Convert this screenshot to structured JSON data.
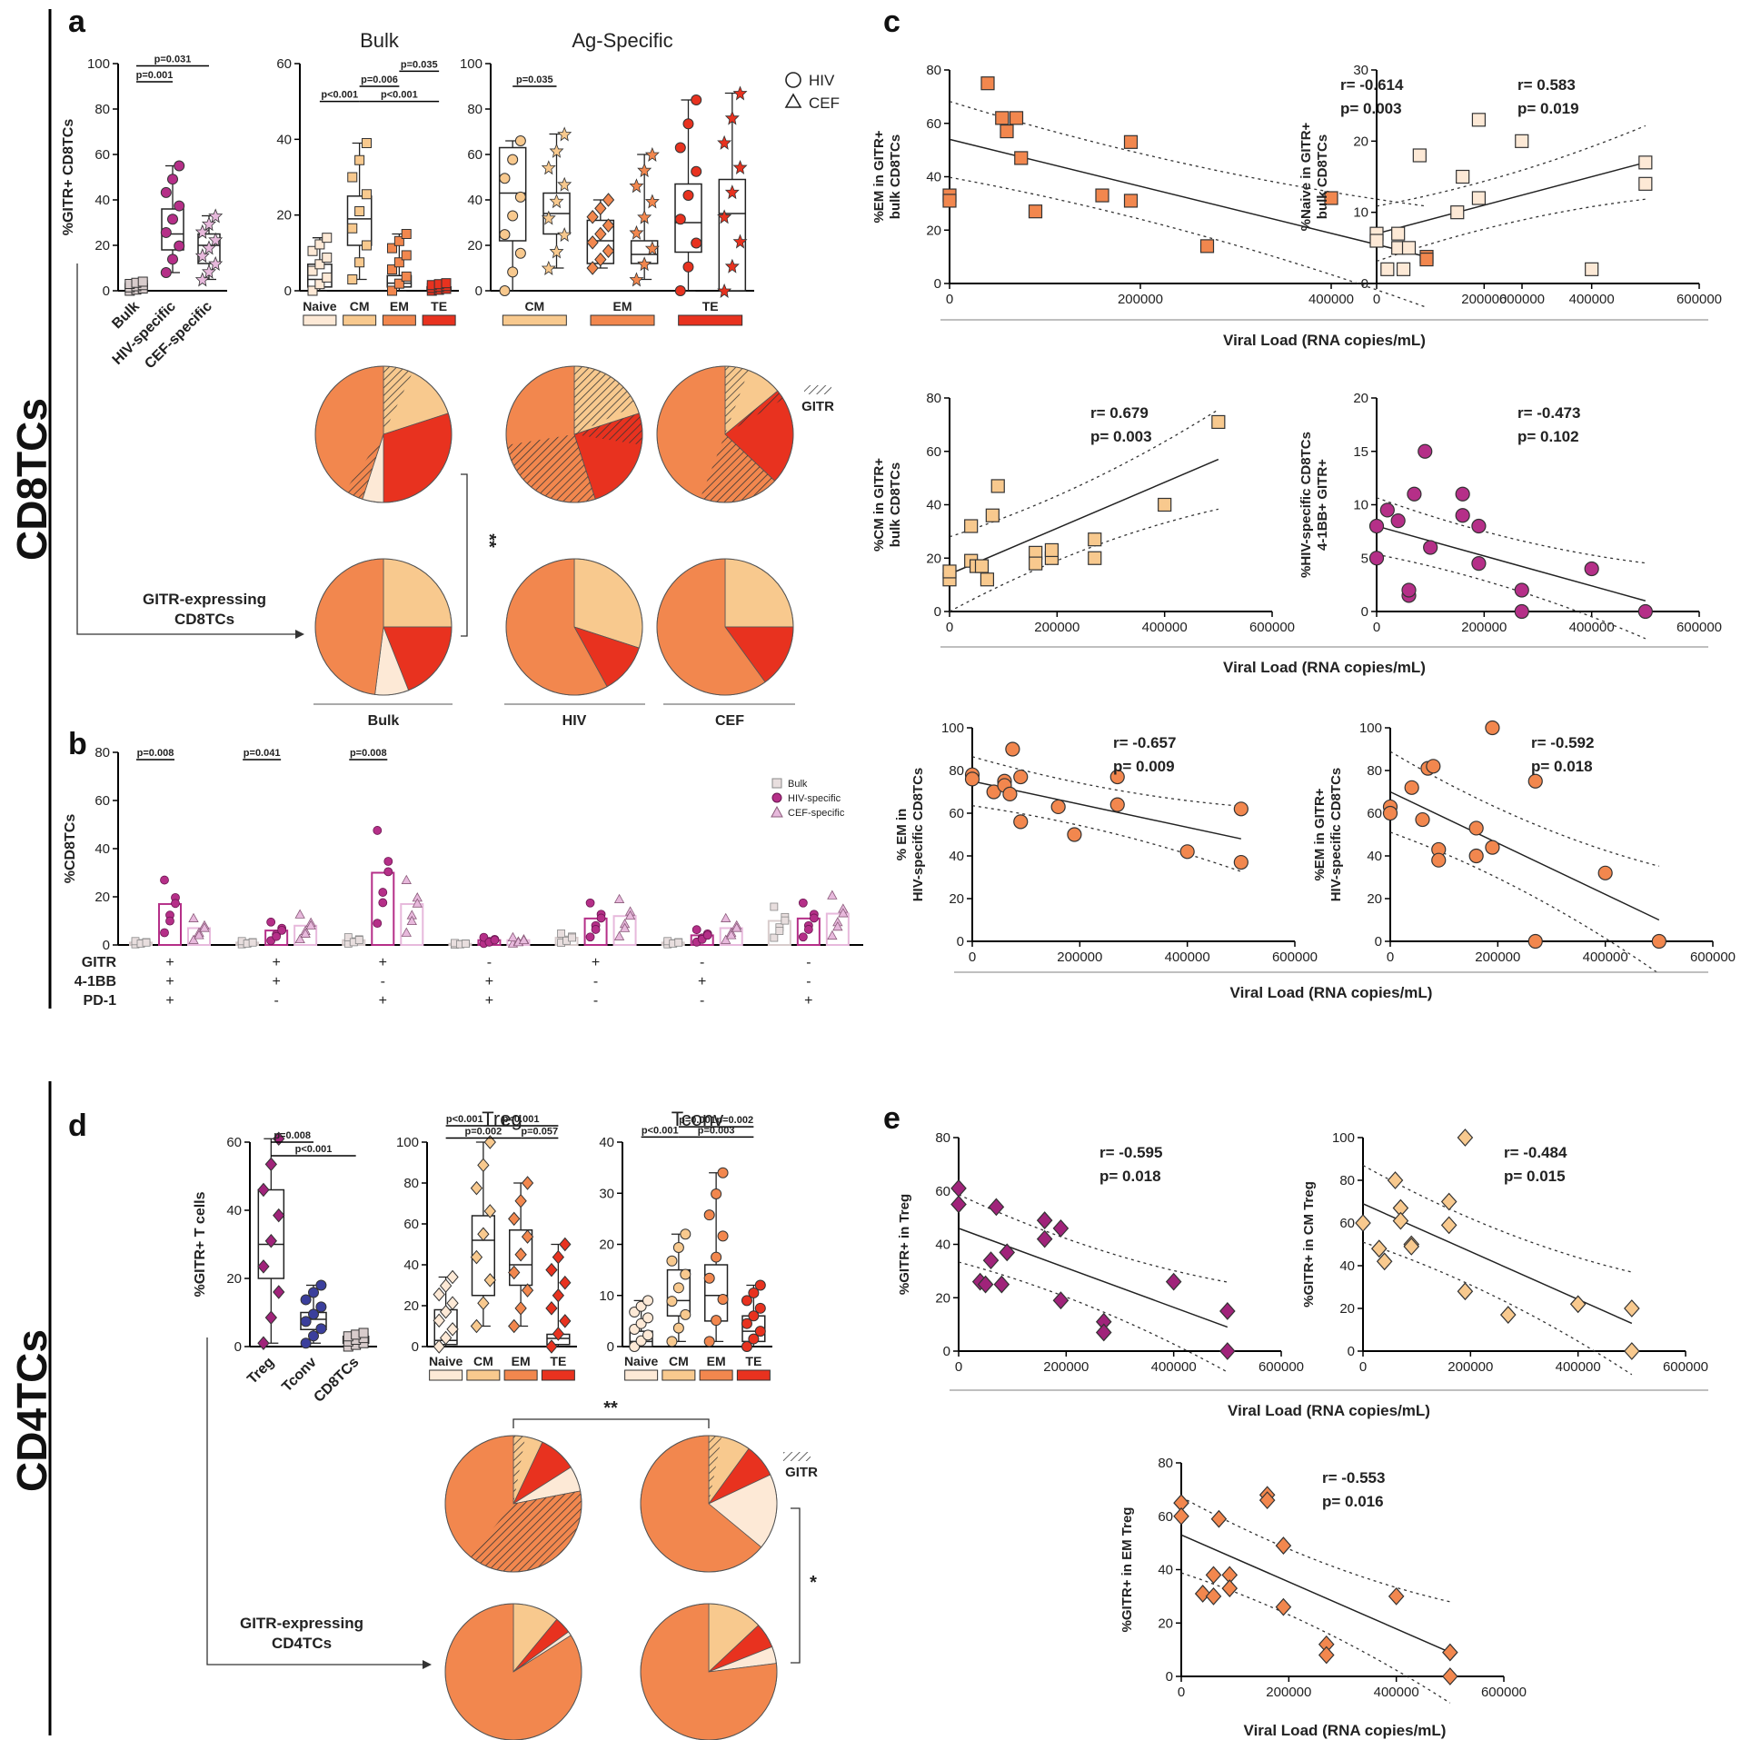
{
  "panel_letters": {
    "a": "a",
    "b": "b",
    "c": "c",
    "d": "d",
    "e": "e"
  },
  "side_labels": {
    "top": "CD8TCs",
    "bottom": "CD4TCs"
  },
  "colors": {
    "naive": "#fde9d6",
    "cm": "#f8c98e",
    "em": "#f2874e",
    "te": "#e8321f",
    "hiv": "#b52f88",
    "cef": "#e7b9dc",
    "bulk": "#d8cccc",
    "treg": "#a0237a",
    "tconv": "#3b3f9c",
    "text": "#222222"
  },
  "legend_a": {
    "hiv": "HIV",
    "cef": "CEF",
    "gitr": "GITR"
  },
  "legend_b": {
    "bulk": "Bulk",
    "hiv": "HIV-specific",
    "cef": "CEF-specific"
  },
  "pie_labels_a": {
    "bulk": "Bulk",
    "hiv": "HIV",
    "cef": "CEF",
    "gitr_expr": "GITR-expressing\nCD8TCs",
    "sig": "**"
  },
  "pie_labels_d": {
    "gitr_expr": "GITR-expressing\nCD4TCs",
    "sig_top": "**",
    "sig_right": "*"
  },
  "phenotype_labels": [
    "Naive",
    "CM",
    "EM",
    "TE"
  ],
  "b_rows": {
    "labels": [
      "GITR",
      "4-1BB",
      "PD-1"
    ],
    "signs": [
      [
        "+",
        "+",
        "+"
      ],
      [
        "+",
        "+",
        "-"
      ],
      [
        "+",
        "-",
        "+"
      ],
      [
        "-",
        "+",
        "+"
      ],
      [
        "+",
        "-",
        "-"
      ],
      [
        "-",
        "+",
        "-"
      ],
      [
        "-",
        "-",
        "+"
      ]
    ]
  },
  "pies": [
    {
      "id": "a-bulk-top",
      "values": [
        0.05,
        0.2,
        0.45,
        0.3
      ],
      "hatch": [
        0.0,
        0.35,
        0.1,
        0.0
      ]
    },
    {
      "id": "a-hiv-top",
      "values": [
        0.0,
        0.2,
        0.55,
        0.25
      ],
      "hatch": [
        0,
        0.9,
        0.5,
        0.3
      ]
    },
    {
      "id": "a-cef-top",
      "values": [
        0.0,
        0.14,
        0.63,
        0.23
      ],
      "hatch": [
        0,
        0.4,
        0.3,
        0.1
      ]
    },
    {
      "id": "a-bulk-bot",
      "values": [
        0.08,
        0.25,
        0.48,
        0.19
      ],
      "hatch": [
        0,
        0,
        0,
        0
      ]
    },
    {
      "id": "a-hiv-bot",
      "values": [
        0.0,
        0.3,
        0.58,
        0.12
      ],
      "hatch": [
        0,
        0,
        0,
        0
      ]
    },
    {
      "id": "a-cef-bot",
      "values": [
        0.0,
        0.25,
        0.6,
        0.15
      ],
      "hatch": [
        0,
        0,
        0,
        0
      ]
    },
    {
      "id": "d-treg-top",
      "values": [
        0.06,
        0.07,
        0.78,
        0.09
      ],
      "hatch": [
        0,
        0.4,
        0.5,
        0.0
      ]
    },
    {
      "id": "d-tconv-top",
      "values": [
        0.18,
        0.1,
        0.64,
        0.08
      ],
      "hatch": [
        0,
        0.3,
        0.0,
        0.0
      ]
    },
    {
      "id": "d-treg-bot",
      "values": [
        0.01,
        0.11,
        0.84,
        0.04
      ],
      "hatch": [
        0,
        0,
        0,
        0
      ]
    },
    {
      "id": "d-tconv-bot",
      "values": [
        0.04,
        0.13,
        0.77,
        0.06
      ],
      "hatch": [
        0,
        0,
        0,
        0
      ]
    }
  ],
  "chart_data": [
    {
      "id": "a1",
      "type": "box",
      "ylabel": "%GITR+ CD8TCs",
      "ylim": [
        0,
        100
      ],
      "yticks": [
        0,
        20,
        40,
        60,
        80,
        100
      ],
      "categories": [
        "Bulk",
        "HIV-specific",
        "CEF-specific"
      ],
      "stats": [
        [
          0,
          1,
          2,
          3,
          4
        ],
        [
          8,
          18,
          25,
          36,
          55
        ],
        [
          5,
          12,
          20,
          25,
          33
        ]
      ],
      "pvals": [
        {
          "text": "p=0.001",
          "from": 0,
          "to": 1,
          "y": 92
        },
        {
          "text": "p=0.031",
          "from": 0,
          "to": 2,
          "y": 99
        }
      ]
    },
    {
      "id": "a2",
      "type": "box",
      "title": "Bulk",
      "ylim": [
        0,
        60
      ],
      "yticks": [
        0,
        20,
        40,
        60
      ],
      "categories": [
        "Naive",
        "CM",
        "EM",
        "TE"
      ],
      "stats": [
        [
          0,
          1,
          3,
          7,
          14
        ],
        [
          3,
          12,
          19,
          25,
          39
        ],
        [
          0,
          1,
          2,
          4,
          15
        ],
        [
          0,
          0,
          1,
          1,
          2
        ]
      ],
      "pvals": [
        {
          "text": "p=0.035",
          "from": 2,
          "to": 3,
          "y": 58
        },
        {
          "text": "p=0.006",
          "from": 1,
          "to": 2,
          "y": 54
        },
        {
          "text": "p<0.001",
          "from": 0,
          "to": 1,
          "y": 50
        },
        {
          "text": "p<0.001",
          "from": 1,
          "to": 3,
          "y": 50
        }
      ]
    },
    {
      "id": "a3",
      "type": "box",
      "title": "Ag-Specific",
      "ylim": [
        0,
        100
      ],
      "yticks": [
        0,
        20,
        40,
        60,
        80,
        100
      ],
      "categories": [
        "CM",
        "EM",
        "TE"
      ],
      "stats": [
        [
          0,
          22,
          43,
          63,
          66
        ],
        [
          10,
          25,
          34,
          43,
          69
        ],
        [
          10,
          12,
          22,
          31,
          40
        ],
        [
          5,
          12,
          16,
          22,
          60
        ],
        [
          0,
          17,
          30,
          47,
          84
        ],
        [
          0,
          0,
          34,
          49,
          87
        ]
      ],
      "pvals": [
        {
          "text": "p=0.035",
          "from": 0,
          "to": 1,
          "y": 90
        }
      ]
    },
    {
      "id": "b",
      "type": "bar",
      "ylabel": "%CD8TCs",
      "ylim": [
        0,
        80
      ],
      "yticks": [
        0,
        20,
        40,
        60,
        80
      ],
      "series": [
        {
          "name": "Bulk",
          "values": [
            1,
            1,
            2,
            0.5,
            3,
            1,
            10
          ]
        },
        {
          "name": "HIV-specific",
          "values": [
            17,
            6,
            30,
            2,
            11,
            4,
            11
          ]
        },
        {
          "name": "CEF-specific",
          "values": [
            7,
            8,
            17,
            2,
            12,
            7,
            13
          ]
        }
      ],
      "pvals": [
        {
          "text": "p=0.008",
          "group": 0
        },
        {
          "text": "p=0.041",
          "group": 1
        },
        {
          "text": "p=0.008",
          "group": 2
        }
      ]
    },
    {
      "id": "c1",
      "type": "scatter",
      "ylabel": "%EM in GITR+\nbulk CD8TCs",
      "xlim": [
        0,
        600000
      ],
      "ylim": [
        0,
        80
      ],
      "yticks": [
        0,
        20,
        40,
        60,
        80
      ],
      "x": [
        0,
        0,
        40000,
        55000,
        60000,
        70000,
        75000,
        90000,
        160000,
        190000,
        190000,
        270000,
        400000,
        500000,
        500000
      ],
      "y": [
        33,
        31,
        75,
        62,
        57,
        62,
        47,
        27,
        33,
        53,
        31,
        14,
        32,
        10,
        9
      ],
      "fit": [
        54,
        10
      ],
      "r": "r= -0.614",
      "p": "p= 0.003",
      "color": "em",
      "marker": "square"
    },
    {
      "id": "c2",
      "type": "scatter",
      "ylabel": "%Naive in GITR+\nbulk CD8TCs",
      "xlim": [
        0,
        600000
      ],
      "ylim": [
        0,
        30
      ],
      "yticks": [
        0,
        10,
        20,
        30
      ],
      "x": [
        0,
        0,
        20000,
        40000,
        40000,
        50000,
        60000,
        80000,
        150000,
        160000,
        190000,
        190000,
        270000,
        400000,
        500000,
        500000
      ],
      "y": [
        7,
        6,
        2,
        7,
        5,
        2,
        5,
        18,
        10,
        15,
        12,
        23,
        20,
        2,
        17,
        14
      ],
      "fit": [
        7,
        17
      ],
      "r": "r= 0.583",
      "p": "p= 0.019",
      "color": "naive",
      "marker": "square"
    },
    {
      "id": "c3",
      "type": "scatter",
      "ylabel": "%CM in GITR+\nbulk CD8TCs",
      "xlim": [
        0,
        600000
      ],
      "ylim": [
        0,
        80
      ],
      "yticks": [
        0,
        20,
        40,
        60,
        80
      ],
      "x": [
        0,
        0,
        40000,
        40000,
        50000,
        60000,
        70000,
        80000,
        90000,
        160000,
        160000,
        190000,
        190000,
        270000,
        270000,
        400000,
        500000
      ],
      "y": [
        12,
        15,
        19,
        32,
        17,
        17,
        12,
        36,
        47,
        22,
        18,
        20,
        23,
        27,
        20,
        40,
        71
      ],
      "fit": [
        14,
        57
      ],
      "r": "r= 0.679",
      "p": "p= 0.003",
      "color": "cm",
      "marker": "square"
    },
    {
      "id": "c4",
      "type": "scatter",
      "ylabel": "%HIV-specific CD8TCs\n4-1BB+ GITR+",
      "xlim": [
        0,
        600000
      ],
      "ylim": [
        0,
        20
      ],
      "yticks": [
        0,
        5,
        10,
        15,
        20
      ],
      "x": [
        0,
        0,
        20000,
        40000,
        60000,
        60000,
        70000,
        90000,
        100000,
        160000,
        160000,
        190000,
        190000,
        270000,
        270000,
        400000,
        500000
      ],
      "y": [
        8,
        5,
        9.5,
        8.5,
        1.5,
        2,
        11,
        15,
        6,
        11,
        9,
        4.5,
        8,
        2,
        0,
        4,
        0
      ],
      "fit": [
        8,
        1
      ],
      "r": "r= -0.473",
      "p": "p= 0.102",
      "color": "hiv",
      "marker": "circle"
    },
    {
      "id": "c5",
      "type": "scatter",
      "ylabel": "% EM in\nHIV-specific CD8TCs",
      "xlim": [
        0,
        600000
      ],
      "ylim": [
        0,
        100
      ],
      "yticks": [
        0,
        20,
        40,
        60,
        80,
        100
      ],
      "x": [
        0,
        0,
        40000,
        60000,
        60000,
        70000,
        75000,
        90000,
        90000,
        160000,
        190000,
        270000,
        270000,
        400000,
        500000,
        500000
      ],
      "y": [
        78,
        76,
        70,
        75,
        73,
        69,
        90,
        77,
        56,
        63,
        50,
        77,
        64,
        42,
        62,
        37
      ],
      "fit": [
        75,
        48
      ],
      "r": "r= -0.657",
      "p": "p= 0.009",
      "color": "em",
      "marker": "circle"
    },
    {
      "id": "c6",
      "type": "scatter",
      "ylabel": "%EM in GITR+\nHIV-specific CD8TCs",
      "xlim": [
        0,
        600000
      ],
      "ylim": [
        0,
        100
      ],
      "yticks": [
        0,
        20,
        40,
        60,
        80,
        100
      ],
      "x": [
        0,
        0,
        40000,
        60000,
        70000,
        80000,
        90000,
        90000,
        160000,
        160000,
        190000,
        190000,
        270000,
        270000,
        400000,
        500000
      ],
      "y": [
        63,
        60,
        72,
        57,
        81,
        82,
        43,
        38,
        53,
        40,
        100,
        44,
        75,
        0,
        32,
        0
      ],
      "fit": [
        70,
        10
      ],
      "r": "r= -0.592",
      "p": "p= 0.018",
      "color": "em",
      "marker": "circle"
    },
    {
      "id": "d1",
      "type": "box",
      "ylabel": "%GITR+ T cells",
      "ylim": [
        0,
        60
      ],
      "yticks": [
        0,
        20,
        40,
        60
      ],
      "categories": [
        "Treg",
        "Tconv",
        "CD8TCs"
      ],
      "stats": [
        [
          1,
          20,
          30,
          46,
          61
        ],
        [
          1,
          5,
          8,
          10,
          18
        ],
        [
          0,
          1,
          2,
          3,
          4
        ]
      ],
      "pvals": [
        {
          "text": "p=0.008",
          "from": 0,
          "to": 1,
          "y": 60
        },
        {
          "text": "p<0.001",
          "from": 0,
          "to": 2,
          "y": 56
        }
      ]
    },
    {
      "id": "d2",
      "type": "box",
      "title": "Treg",
      "ylim": [
        0,
        100
      ],
      "yticks": [
        0,
        20,
        40,
        60,
        80,
        100
      ],
      "categories": [
        "Naive",
        "CM",
        "EM",
        "TE"
      ],
      "stats": [
        [
          0,
          1,
          3,
          18,
          34
        ],
        [
          10,
          25,
          52,
          64,
          100
        ],
        [
          10,
          30,
          40,
          57,
          80
        ],
        [
          0,
          1,
          4,
          6,
          50
        ]
      ],
      "pvals": [
        {
          "text": "p<0.001",
          "from": 0,
          "to": 1,
          "y": 108
        },
        {
          "text": "p<0.001",
          "from": 1,
          "to": 3,
          "y": 108
        },
        {
          "text": "p=0.002",
          "from": 0,
          "to": 2,
          "y": 102
        },
        {
          "text": "p=0.057",
          "from": 2,
          "to": 3,
          "y": 102
        }
      ]
    },
    {
      "id": "d3",
      "type": "box",
      "title": "Tconv",
      "ylim": [
        0,
        40
      ],
      "yticks": [
        0,
        10,
        20,
        30,
        40
      ],
      "categories": [
        "Naive",
        "CM",
        "EM",
        "TE"
      ],
      "stats": [
        [
          0,
          0,
          1,
          3,
          9
        ],
        [
          1,
          6,
          9,
          15,
          22
        ],
        [
          1,
          5,
          10,
          16,
          34
        ],
        [
          0,
          1,
          3,
          6,
          12
        ]
      ],
      "pvals": [
        {
          "text": "p=0.001",
          "from": 1,
          "to": 2,
          "y": 43
        },
        {
          "text": "p=0.002",
          "from": 2,
          "to": 3,
          "y": 43
        },
        {
          "text": "p<0.001",
          "from": 0,
          "to": 1,
          "y": 41
        },
        {
          "text": "p=0.003",
          "from": 1,
          "to": 3,
          "y": 41
        }
      ]
    },
    {
      "id": "e1",
      "type": "scatter",
      "ylabel": "%GITR+ in Treg",
      "xlim": [
        0,
        600000
      ],
      "ylim": [
        0,
        80
      ],
      "yticks": [
        0,
        20,
        40,
        60,
        80
      ],
      "x": [
        0,
        0,
        40000,
        50000,
        60000,
        70000,
        80000,
        90000,
        160000,
        160000,
        190000,
        190000,
        270000,
        270000,
        400000,
        500000,
        500000
      ],
      "y": [
        61,
        55,
        26,
        25,
        34,
        54,
        25,
        37,
        49,
        42,
        46,
        19,
        11,
        7,
        26,
        15,
        0
      ],
      "fit": [
        46,
        9
      ],
      "r": "r= -0.595",
      "p": "p= 0.018",
      "color": "treg",
      "marker": "diamond"
    },
    {
      "id": "e2",
      "type": "scatter",
      "ylabel": "%GITR+ in CM Treg",
      "xlim": [
        0,
        600000
      ],
      "ylim": [
        0,
        100
      ],
      "yticks": [
        0,
        20,
        40,
        60,
        80,
        100
      ],
      "x": [
        0,
        30000,
        40000,
        60000,
        70000,
        70000,
        90000,
        90000,
        160000,
        160000,
        190000,
        190000,
        270000,
        400000,
        500000,
        500000
      ],
      "y": [
        60,
        48,
        42,
        80,
        67,
        61,
        50,
        49,
        70,
        59,
        100,
        28,
        17,
        22,
        20,
        0
      ],
      "fit": [
        69,
        13
      ],
      "r": "r= -0.484",
      "p": "p= 0.015",
      "color": "cm",
      "marker": "diamond"
    },
    {
      "id": "e3",
      "type": "scatter",
      "ylabel": "%GITR+ in EM Treg",
      "xlim": [
        0,
        600000
      ],
      "ylim": [
        0,
        80
      ],
      "yticks": [
        0,
        20,
        40,
        60,
        80
      ],
      "x": [
        0,
        0,
        40000,
        60000,
        60000,
        70000,
        90000,
        90000,
        160000,
        160000,
        190000,
        190000,
        270000,
        270000,
        400000,
        500000,
        500000
      ],
      "y": [
        65,
        60,
        31,
        38,
        30,
        59,
        38,
        33,
        68,
        66,
        49,
        26,
        12,
        8,
        30,
        9,
        0
      ],
      "fit": [
        53,
        9
      ],
      "r": "r= -0.553",
      "p": "p= 0.016",
      "color": "em",
      "marker": "diamond"
    }
  ],
  "axis_common": {
    "xticks": [
      0,
      200000,
      400000,
      600000
    ],
    "xlabel": "Viral Load (RNA copies/mL)"
  }
}
